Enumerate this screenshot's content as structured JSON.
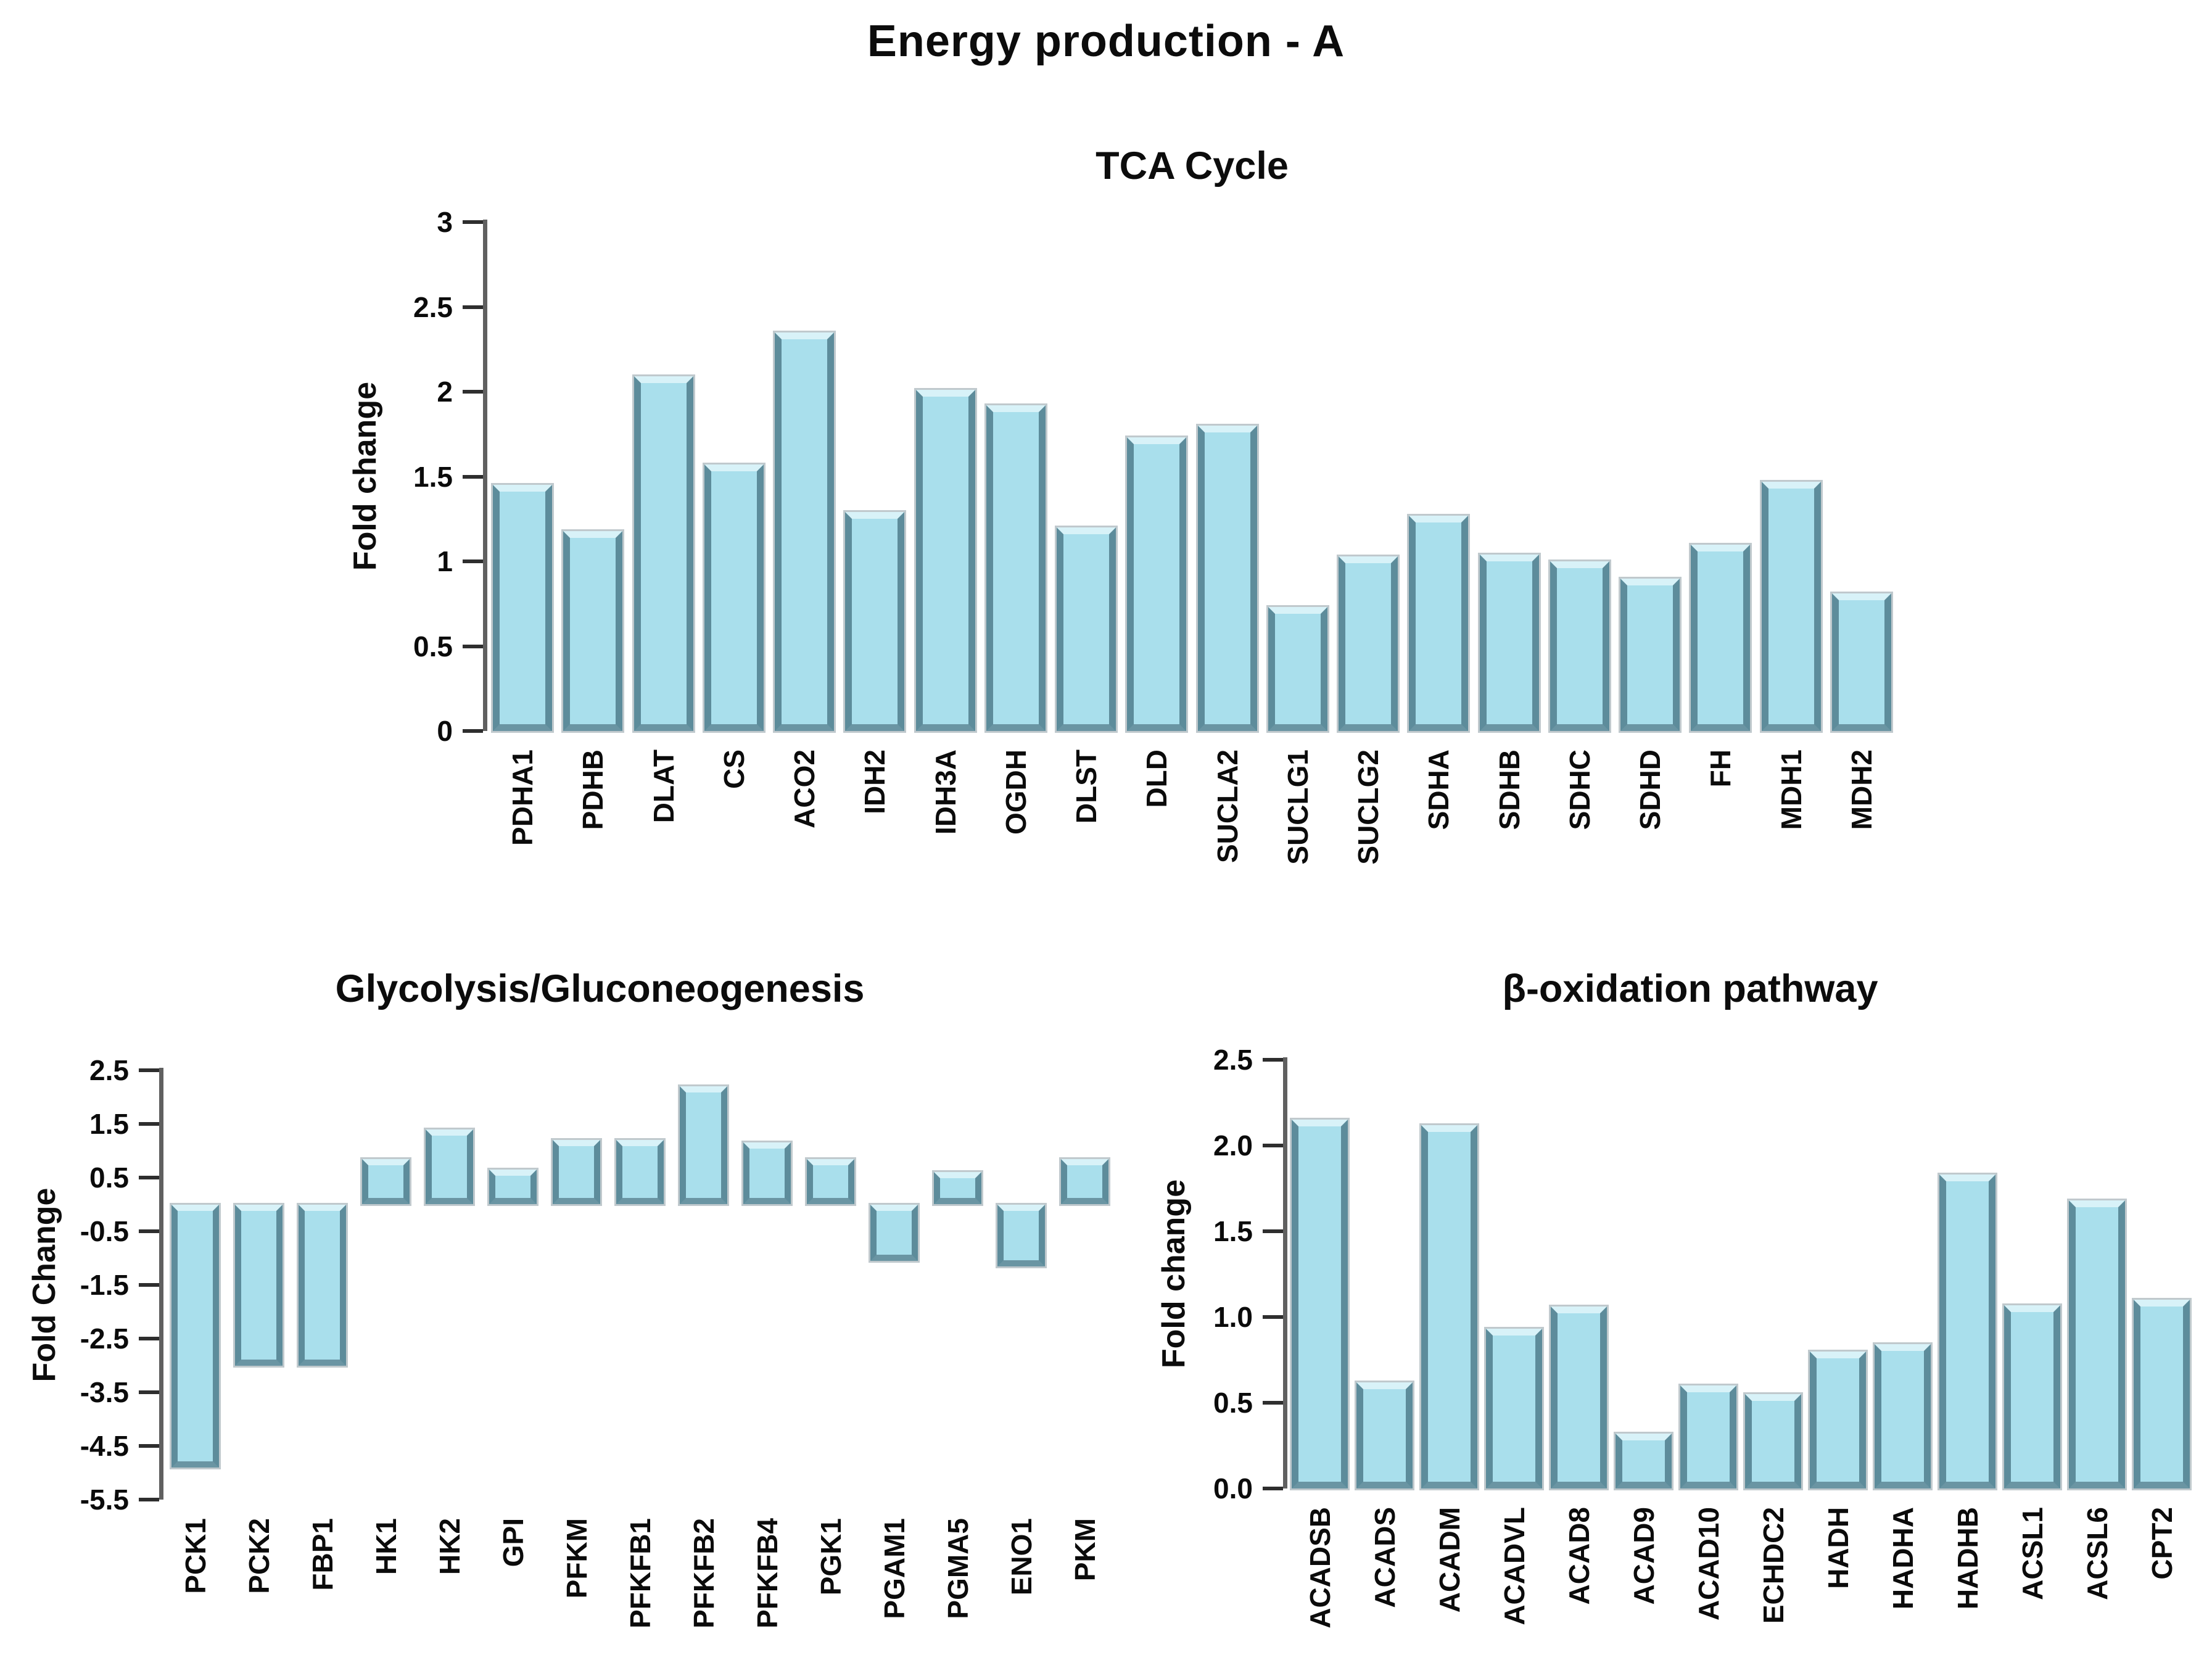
{
  "page": {
    "title": "Energy production - A"
  },
  "style": {
    "bar_fill": "#a9dfec",
    "bar_bevel_light": "#d8f2f8",
    "bar_bevel_dark": "#5d8c9b",
    "bar_bevel_bottom": "#6a95a3",
    "axis_color": "#606060",
    "text_color": "#0c0c0c",
    "background": "#ffffff"
  },
  "chart_data": [
    {
      "id": "tca-cycle",
      "type": "bar",
      "title": "TCA Cycle",
      "xlabel": "",
      "ylabel": "Fold change",
      "ylim": [
        0,
        3
      ],
      "grid": false,
      "legend": null,
      "yticks": [
        3,
        2.5,
        2,
        1.5,
        1,
        0.5,
        0
      ],
      "ytick_labels": [
        "3",
        "2.5",
        "2",
        "1.5",
        "1",
        "0.5",
        "0"
      ],
      "categories": [
        "PDHA1",
        "PDHB",
        "DLAT",
        "CS",
        "ACO2",
        "IDH2",
        "IDH3A",
        "OGDH",
        "DLST",
        "DLD",
        "SUCLA2",
        "SUCLG1",
        "SUCLG2",
        "SDHA",
        "SDHB",
        "SDHC",
        "SDHD",
        "FH",
        "MDH1",
        "MDH2"
      ],
      "values": [
        1.45,
        1.18,
        2.09,
        1.57,
        2.35,
        1.29,
        2.01,
        1.92,
        1.2,
        1.73,
        1.8,
        0.73,
        1.03,
        1.27,
        1.04,
        1.0,
        0.9,
        1.1,
        1.47,
        0.81
      ]
    },
    {
      "id": "glycolysis-gluconeogenesis",
      "type": "bar",
      "title": "Glycolysis/Gluconeogenesis",
      "xlabel": "",
      "ylabel": "Fold Change",
      "ylim": [
        -5.5,
        2.5
      ],
      "grid": false,
      "legend": null,
      "yticks": [
        2.5,
        1.5,
        0.5,
        -0.5,
        -1.5,
        -2.5,
        -3.5,
        -4.5,
        -5.5
      ],
      "ytick_labels": [
        "2.5",
        "1.5",
        "0.5",
        "-0.5",
        "-1.5",
        "-2.5",
        "-3.5",
        "-4.5",
        "-5.5"
      ],
      "categories": [
        "PCK1",
        "PCK2",
        "FBP1",
        "HK1",
        "HK2",
        "GPI",
        "PFKM",
        "PFKFB1",
        "PFKFB2",
        "PFKFB4",
        "PGK1",
        "PGAM1",
        "PGMA5",
        "ENO1",
        "PKM"
      ],
      "values": [
        -4.9,
        -3.0,
        -3.0,
        0.85,
        1.4,
        0.65,
        1.2,
        1.2,
        2.2,
        1.15,
        0.85,
        -1.05,
        0.6,
        -1.15,
        0.85
      ]
    },
    {
      "id": "beta-oxidation-pathway",
      "type": "bar",
      "title": "β-oxidation pathway",
      "xlabel": "",
      "ylabel": "Fold change",
      "ylim": [
        0,
        2.5
      ],
      "grid": false,
      "legend": null,
      "yticks": [
        2.5,
        2,
        1.5,
        1,
        0.5,
        0
      ],
      "ytick_labels": [
        "2.5",
        "2.0",
        "1.5",
        "1.0",
        "0.5",
        "0.0"
      ],
      "categories": [
        "ACADSB",
        "ACADS",
        "ACADM",
        "ACADVL",
        "ACAD8",
        "ACAD9",
        "ACAD10",
        "ECHDC2",
        "HADH",
        "HADHA",
        "HADHB",
        "ACSL1",
        "ACSL6",
        "CPT2"
      ],
      "values": [
        2.15,
        0.62,
        2.12,
        0.93,
        1.06,
        0.32,
        0.6,
        0.55,
        0.8,
        0.84,
        1.83,
        1.07,
        1.68,
        1.1
      ]
    }
  ]
}
